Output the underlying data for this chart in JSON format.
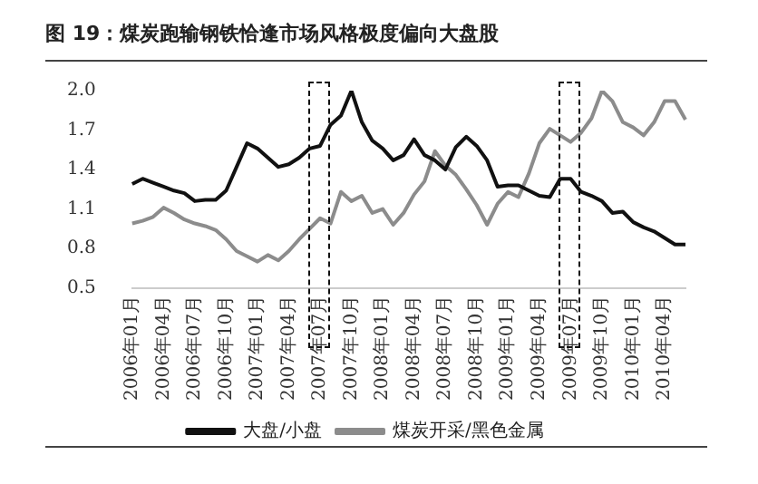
{
  "chart_data": {
    "type": "line",
    "title": "图 19：煤炭跑输钢铁恰逢市场风格极度偏向大盘股",
    "categories": [
      "2006年01月",
      null,
      null,
      "2006年04月",
      null,
      null,
      "2006年07月",
      null,
      null,
      "2006年10月",
      null,
      null,
      "2007年01月",
      null,
      null,
      "2007年04月",
      null,
      null,
      "2007年07月",
      null,
      null,
      "2007年10月",
      null,
      null,
      "2008年01月",
      null,
      null,
      "2008年04月",
      null,
      null,
      "2008年07月",
      null,
      null,
      "2008年10月",
      null,
      null,
      "2009年01月",
      null,
      null,
      "2009年04月",
      null,
      null,
      "2009年07月",
      null,
      null,
      "2009年10月",
      null,
      null,
      "2010年01月",
      null,
      null,
      "2010年04月",
      null,
      null
    ],
    "series": [
      {
        "name": "大盘/小盘",
        "color": "#111111",
        "values": [
          1.29,
          1.33,
          1.3,
          1.27,
          1.24,
          1.22,
          1.16,
          1.17,
          1.17,
          1.24,
          1.42,
          1.6,
          1.56,
          1.49,
          1.42,
          1.44,
          1.49,
          1.56,
          1.58,
          1.74,
          1.81,
          2.0,
          1.76,
          1.62,
          1.56,
          1.47,
          1.51,
          1.63,
          1.51,
          1.47,
          1.4,
          1.57,
          1.65,
          1.58,
          1.47,
          1.27,
          1.28,
          1.28,
          1.24,
          1.2,
          1.19,
          1.33,
          1.33,
          1.23,
          1.2,
          1.16,
          1.07,
          1.08,
          1.0,
          0.96,
          0.93,
          0.88,
          0.83,
          0.83
        ]
      },
      {
        "name": "煤炭开采/黑色金属",
        "color": "#8c8c8c",
        "values": [
          0.99,
          1.01,
          1.04,
          1.11,
          1.07,
          1.02,
          0.99,
          0.97,
          0.94,
          0.87,
          0.78,
          0.74,
          0.7,
          0.75,
          0.71,
          0.78,
          0.87,
          0.95,
          1.03,
          0.99,
          1.23,
          1.16,
          1.2,
          1.07,
          1.1,
          0.98,
          1.07,
          1.21,
          1.31,
          1.54,
          1.43,
          1.36,
          1.25,
          1.13,
          0.98,
          1.14,
          1.23,
          1.19,
          1.37,
          1.6,
          1.71,
          1.66,
          1.61,
          1.68,
          1.79,
          2.0,
          1.92,
          1.76,
          1.72,
          1.66,
          1.76,
          1.92,
          1.92,
          1.78
        ]
      }
    ],
    "ylim": [
      0.5,
      2.0
    ],
    "yticks": [
      0.5,
      0.8,
      1.1,
      1.4,
      1.7,
      {
        "value": 2.0,
        "label": "2.0"
      }
    ],
    "grid": false,
    "legend": "bottom",
    "marker": "none",
    "line_style": "solid"
  }
}
